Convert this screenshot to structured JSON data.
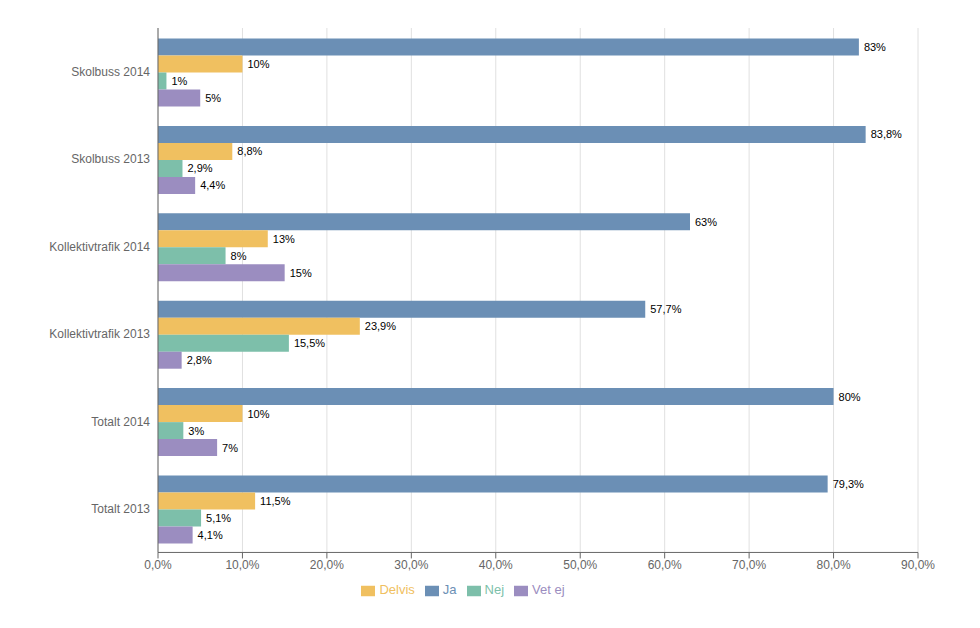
{
  "chart_data": {
    "type": "bar",
    "orientation": "horizontal",
    "categories": [
      "Skolbuss 2014",
      "Skolbuss 2013",
      "Kollektivtrafik 2014",
      "Kollektivtrafik 2013",
      "Totalt 2014",
      "Totalt 2013"
    ],
    "series": [
      {
        "name": "Ja",
        "color": "#6b8fb5",
        "values": [
          83.0,
          83.8,
          63.0,
          57.7,
          80.0,
          79.3
        ],
        "value_labels": [
          "83%",
          "83,8%",
          "63%",
          "57,7%",
          "80%",
          "79,3%"
        ]
      },
      {
        "name": "Delvis",
        "color": "#f0c060",
        "values": [
          10.0,
          8.8,
          13.0,
          23.9,
          10.0,
          11.5
        ],
        "value_labels": [
          "10%",
          "8,8%",
          "13%",
          "23,9%",
          "10%",
          "11,5%"
        ]
      },
      {
        "name": "Nej",
        "color": "#7dbfaa",
        "values": [
          1.0,
          2.9,
          8.0,
          15.5,
          3.0,
          5.1
        ],
        "value_labels": [
          "1%",
          "2,9%",
          "8%",
          "15,5%",
          "3%",
          "5,1%"
        ]
      },
      {
        "name": "Vet ej",
        "color": "#9b8dc0",
        "values": [
          5.0,
          4.4,
          15.0,
          2.8,
          7.0,
          4.1
        ],
        "value_labels": [
          "5%",
          "4,4%",
          "15%",
          "2,8%",
          "7%",
          "4,1%"
        ]
      }
    ],
    "xlim": [
      0,
      90
    ],
    "xticks": [
      {
        "value": 0,
        "label": "0,0%"
      },
      {
        "value": 10,
        "label": "10,0%"
      },
      {
        "value": 20,
        "label": "20,0%"
      },
      {
        "value": 30,
        "label": "30,0%"
      },
      {
        "value": 40,
        "label": "40,0%"
      },
      {
        "value": 50,
        "label": "50,0%"
      },
      {
        "value": 60,
        "label": "60,0%"
      },
      {
        "value": 70,
        "label": "70,0%"
      },
      {
        "value": 80,
        "label": "80,0%"
      },
      {
        "value": 90,
        "label": "90,0%"
      }
    ],
    "grid": true,
    "legend": "bottom",
    "data_labels": true
  }
}
